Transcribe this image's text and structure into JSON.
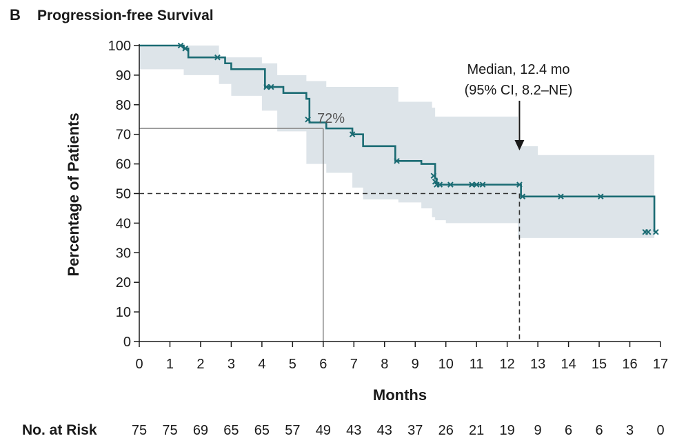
{
  "panel": {
    "letter": "B",
    "title": "Progression-free Survival"
  },
  "chart_data": {
    "type": "line",
    "subtype": "kaplan-meier",
    "title": "Progression-free Survival",
    "xlabel": "Months",
    "ylabel": "Percentage of Patients",
    "xlim": [
      0,
      17
    ],
    "ylim": [
      0,
      100
    ],
    "xticks": [
      0,
      1,
      2,
      3,
      4,
      5,
      6,
      7,
      8,
      9,
      10,
      11,
      12,
      13,
      14,
      15,
      16,
      17
    ],
    "yticks": [
      0,
      10,
      20,
      30,
      40,
      50,
      60,
      70,
      80,
      90,
      100
    ],
    "grid": false,
    "colors": {
      "curve": "#1a6b73",
      "ci_band": "#dde4e9",
      "reference": "#888888",
      "median_line": "#333333"
    },
    "series": [
      {
        "kind": "survival_step",
        "x": [
          0,
          1.3,
          1.45,
          1.6,
          2.6,
          2.8,
          3.0,
          4.0,
          4.1,
          4.5,
          4.7,
          5.45,
          5.55,
          6.1,
          6.85,
          6.95,
          7.3,
          8.2,
          8.35,
          8.45,
          9.2,
          9.55,
          9.65,
          9.7,
          10.0,
          12.35,
          12.45,
          13.0,
          15.5,
          16.8
        ],
        "y": [
          100,
          100,
          99,
          96,
          96,
          94,
          92,
          92,
          86,
          86,
          84,
          82,
          74,
          72,
          72,
          70,
          66,
          66,
          61,
          61,
          60,
          60,
          55,
          53,
          53,
          53,
          49,
          49,
          49,
          37
        ]
      }
    ],
    "ci_band": {
      "x": [
        0,
        1.45,
        2.6,
        3.0,
        4.0,
        4.5,
        5.45,
        6.1,
        6.95,
        7.3,
        8.45,
        9.2,
        9.55,
        9.65,
        10.0,
        12.35,
        13.0,
        15.5,
        16.8
      ],
      "upper": [
        100,
        100,
        96,
        96,
        94,
        90,
        88,
        86,
        86,
        86,
        81,
        81,
        79,
        76,
        76,
        66,
        63,
        63,
        63
      ],
      "lower": [
        100,
        92,
        90,
        87,
        83,
        78,
        71,
        60,
        57,
        52,
        48,
        47,
        45,
        42,
        41,
        40,
        35,
        35,
        35
      ]
    },
    "censor_marks": [
      {
        "x": 1.35,
        "y": 100
      },
      {
        "x": 1.5,
        "y": 99
      },
      {
        "x": 2.55,
        "y": 96
      },
      {
        "x": 4.15,
        "y": 86
      },
      {
        "x": 4.3,
        "y": 86
      },
      {
        "x": 5.5,
        "y": 75
      },
      {
        "x": 6.95,
        "y": 70
      },
      {
        "x": 8.4,
        "y": 61
      },
      {
        "x": 9.6,
        "y": 56
      },
      {
        "x": 9.65,
        "y": 54
      },
      {
        "x": 9.7,
        "y": 53
      },
      {
        "x": 9.8,
        "y": 53
      },
      {
        "x": 10.15,
        "y": 53
      },
      {
        "x": 10.85,
        "y": 53
      },
      {
        "x": 11.0,
        "y": 53
      },
      {
        "x": 11.2,
        "y": 53
      },
      {
        "x": 12.4,
        "y": 53
      },
      {
        "x": 12.5,
        "y": 49
      },
      {
        "x": 13.75,
        "y": 49
      },
      {
        "x": 15.05,
        "y": 49
      },
      {
        "x": 16.5,
        "y": 37
      },
      {
        "x": 16.6,
        "y": 37
      },
      {
        "x": 16.85,
        "y": 37
      }
    ],
    "reference_lines": {
      "six_month": {
        "x": 6,
        "y": 72,
        "label": "72%"
      },
      "median": {
        "x": 12.4,
        "y": 50
      }
    },
    "annotations": [
      {
        "text_line1": "Median, 12.4 mo",
        "text_line2": "(95% CI, 8.2–NE)",
        "x": 12.4
      }
    ],
    "at_risk": {
      "label": "No. at Risk",
      "values": [
        75,
        75,
        69,
        65,
        65,
        57,
        49,
        43,
        43,
        37,
        26,
        21,
        19,
        9,
        6,
        6,
        3,
        0
      ]
    }
  }
}
